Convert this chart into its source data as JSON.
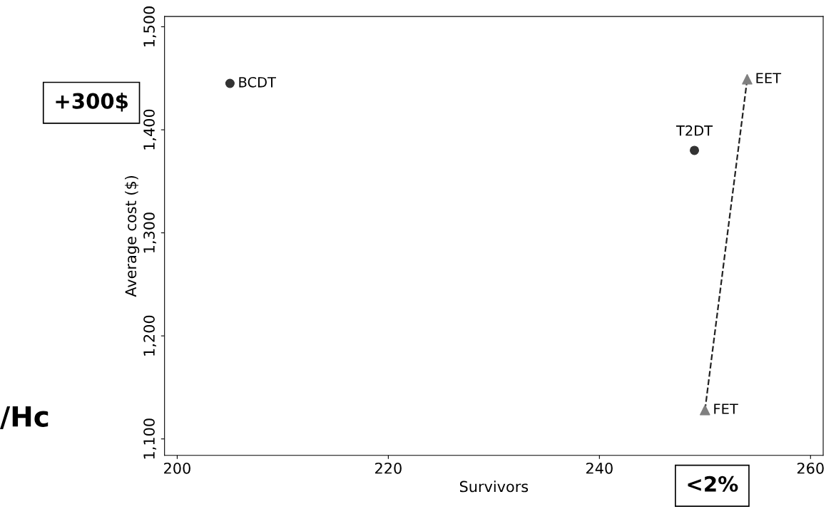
{
  "chart_data": {
    "type": "scatter",
    "xlabel": "Survivors",
    "ylabel": "Average cost ($)",
    "xlim": [
      198.8,
      261.2
    ],
    "ylim": [
      1084,
      1510
    ],
    "xticks": [
      200,
      220,
      240,
      260
    ],
    "yticks": [
      {
        "value": 1100,
        "label": "1,100"
      },
      {
        "value": 1200,
        "label": "1,200"
      },
      {
        "value": 1300,
        "label": "1,300"
      },
      {
        "value": 1400,
        "label": "1,400"
      },
      {
        "value": 1500,
        "label": "1,500"
      }
    ],
    "grid": false,
    "legend": false,
    "series": [
      {
        "color": "#333333",
        "marker": "circle",
        "x": [
          205.0,
          249.0
        ],
        "values": [
          1445,
          1380
        ]
      },
      {
        "type": "line",
        "color": "#808080",
        "marker": "triangle",
        "line_style": "dashed",
        "x": [
          250.0,
          254.0
        ],
        "values": [
          1128,
          1449
        ]
      }
    ],
    "annotations": [
      {
        "text": "BCDT",
        "x": 205.0,
        "y": 1445
      },
      {
        "text": "T2DT",
        "x": 249.0,
        "y": 1380
      },
      {
        "text": "EET",
        "x": 254.0,
        "y": 1449
      },
      {
        "text": "FET",
        "x": 250.0,
        "y": 1128
      },
      "+300$",
      "<2%",
      "/Hc"
    ]
  }
}
